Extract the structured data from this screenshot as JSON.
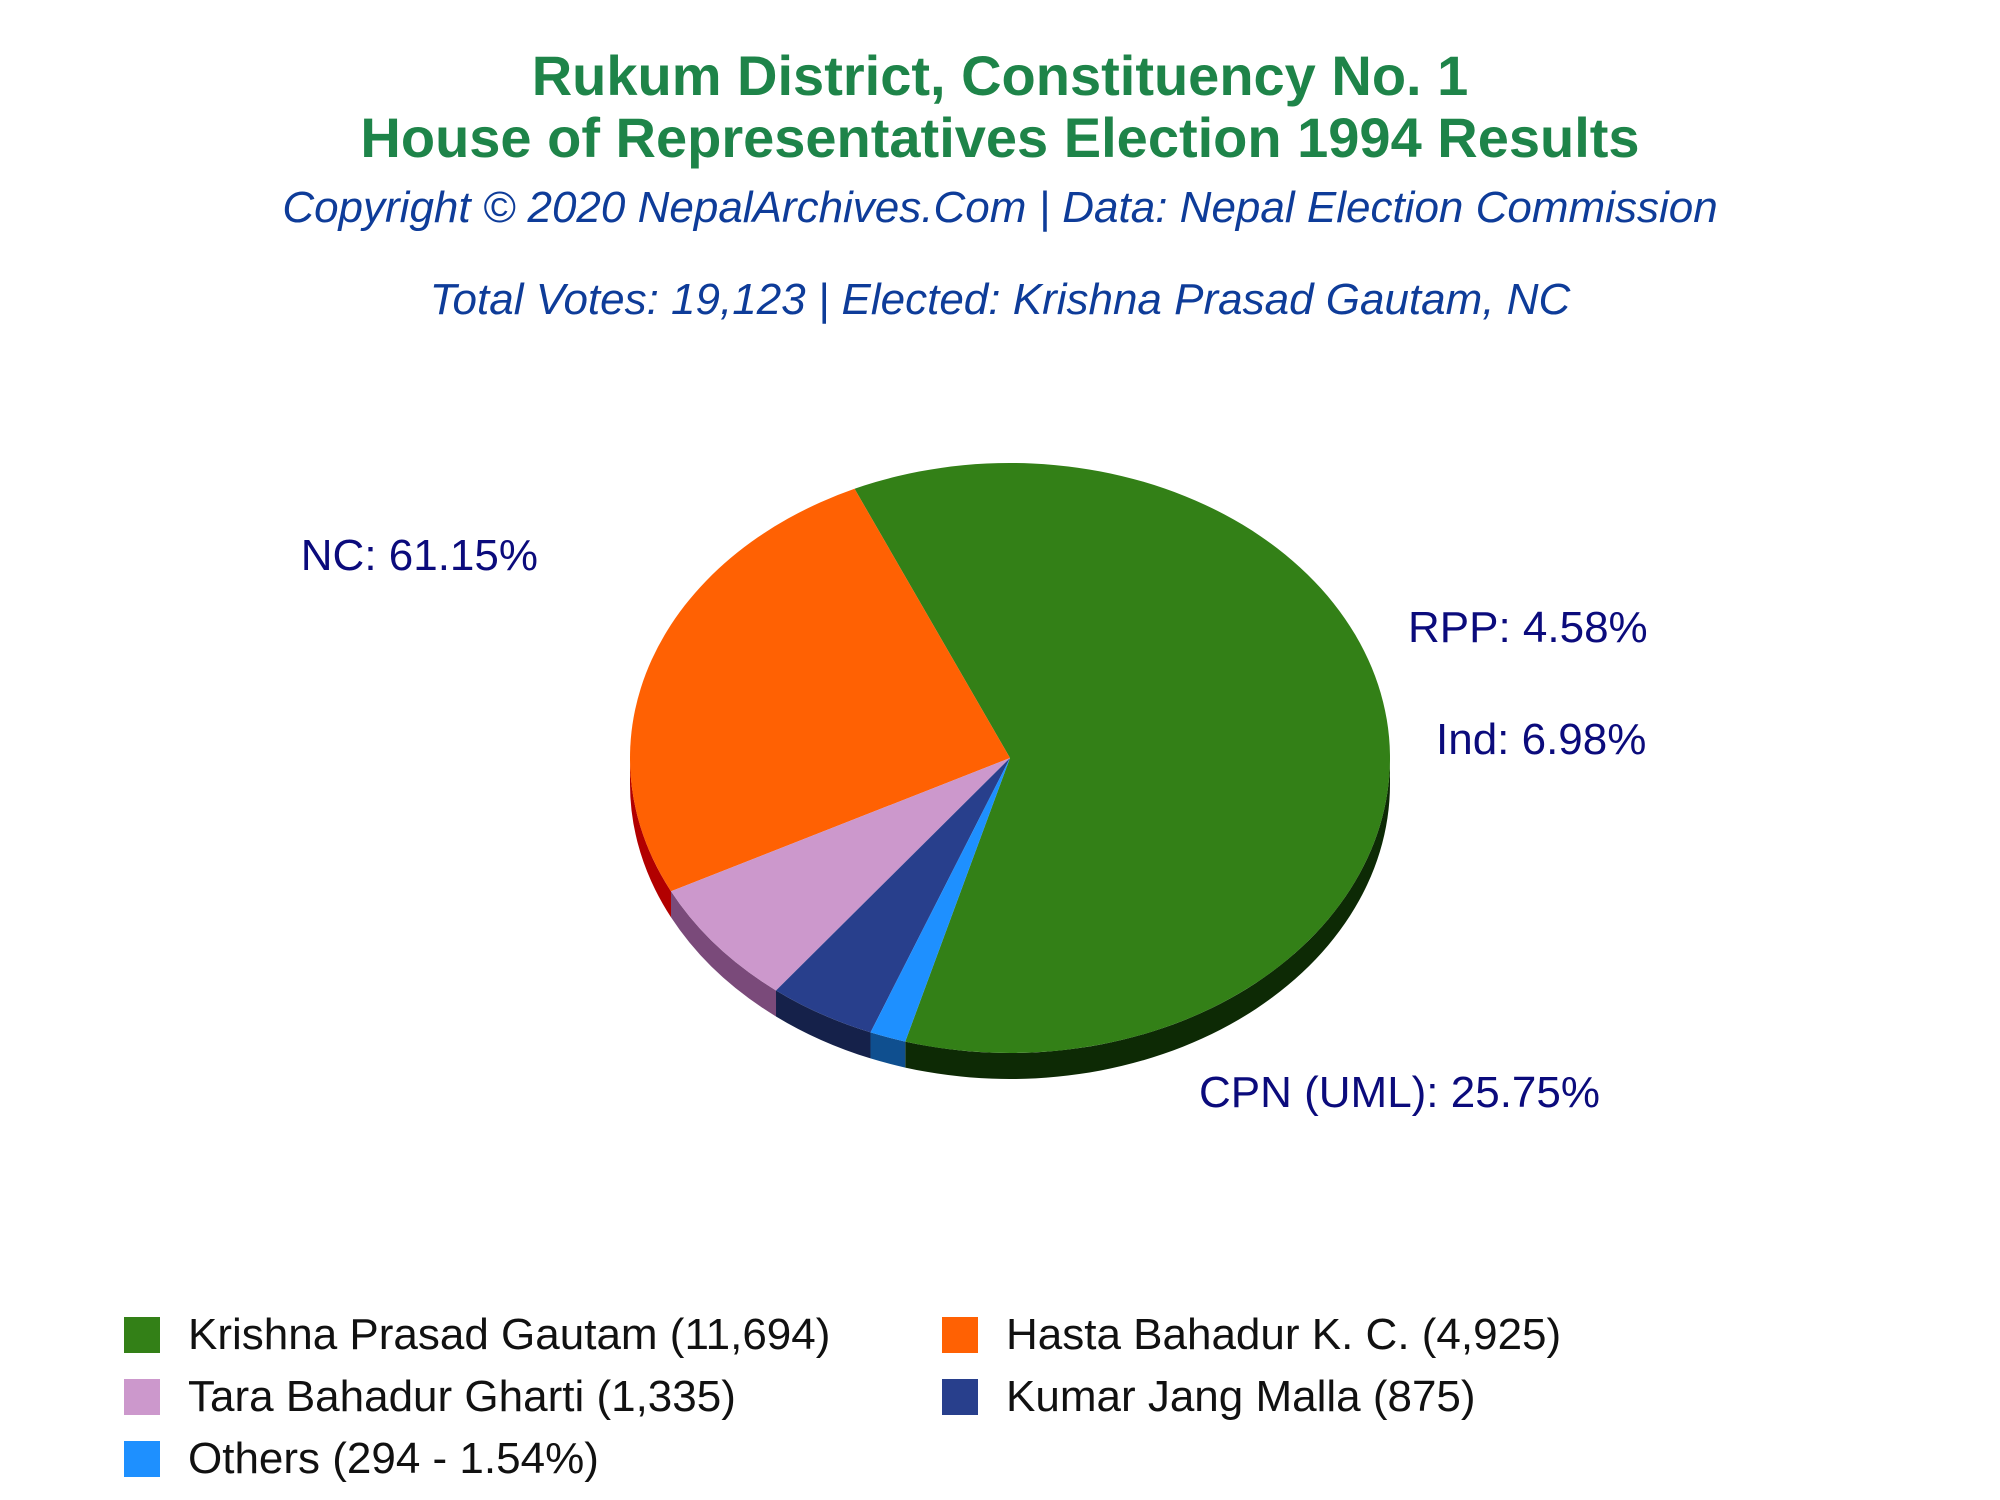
{
  "chart_data": {
    "type": "pie",
    "title": "Rukum District, Constituency No. 1",
    "title2": "House of Representatives Election 1994 Results",
    "subtitle": "Copyright © 2020 NepalArchives.Com | Data: Nepal Election Commission",
    "subtitle2": "Total Votes: 19,123 | Elected: Krishna Prasad Gautam, NC",
    "slices": [
      {
        "candidate": "Krishna Prasad Gautam",
        "votes": 11694,
        "percent": 61.15,
        "label": "NC: 61.15%",
        "legend": "Krishna Prasad Gautam (11,694)",
        "color": "#338017",
        "side_color": "#0d2a05"
      },
      {
        "candidate": "Hasta Bahadur K. C.",
        "votes": 4925,
        "percent": 25.75,
        "label": "CPN (UML): 25.75%",
        "legend": "Hasta Bahadur K. C. (4,925)",
        "color": "#ff6103",
        "side_color": "#b20000"
      },
      {
        "candidate": "Tara Bahadur Gharti",
        "votes": 1335,
        "percent": 6.98,
        "label": "Ind: 6.98%",
        "legend": "Tara Bahadur Gharti (1,335)",
        "color": "#cc98cc",
        "side_color": "#7a4a7a"
      },
      {
        "candidate": "Kumar Jang Malla",
        "votes": 875,
        "percent": 4.58,
        "label": "RPP: 4.58%",
        "legend": "Kumar Jang Malla (875)",
        "color": "#283f8c",
        "side_color": "#15214a"
      },
      {
        "candidate": "Others",
        "votes": 294,
        "percent": 1.54,
        "label": "",
        "legend": "Others (294 - 1.54%)",
        "color": "#1e90ff",
        "side_color": "#0f4f8f"
      }
    ],
    "legend_placement": "bottom"
  },
  "colors": {
    "title": "#1e8449",
    "subtitle": "#0e3c99",
    "label": "#0b0b7c"
  }
}
